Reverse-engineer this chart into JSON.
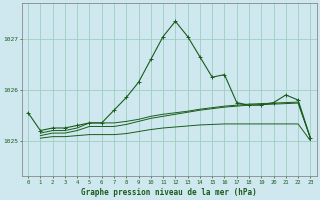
{
  "background_color": "#cfe8f0",
  "grid_color": "#9dcfbf",
  "line_color": "#1a5c1a",
  "marker_color": "#1a5c1a",
  "title": "Graphe pression niveau de la mer (hPa)",
  "xlabel_color": "#1a5c1a",
  "xlim": [
    -0.5,
    23.5
  ],
  "ylim": [
    1024.3,
    1027.7
  ],
  "yticks": [
    1025,
    1026,
    1027
  ],
  "xticks": [
    0,
    1,
    2,
    3,
    4,
    5,
    6,
    7,
    8,
    9,
    10,
    11,
    12,
    13,
    14,
    15,
    16,
    17,
    18,
    19,
    20,
    21,
    22,
    23
  ],
  "series_main": {
    "x": [
      0,
      1,
      2,
      3,
      4,
      5,
      6,
      7,
      8,
      9,
      10,
      11,
      12,
      13,
      14,
      15,
      16,
      17,
      18,
      19,
      20,
      21,
      22,
      23
    ],
    "y": [
      1025.55,
      1025.2,
      1025.25,
      1025.25,
      1025.3,
      1025.35,
      1025.35,
      1025.6,
      1025.85,
      1026.15,
      1026.6,
      1027.05,
      1027.35,
      1027.05,
      1026.65,
      1026.25,
      1026.3,
      1025.75,
      1025.7,
      1025.7,
      1025.75,
      1025.9,
      1025.8,
      1025.05
    ]
  },
  "series_flat": [
    {
      "x": [
        1,
        2,
        3,
        4,
        5,
        6,
        7,
        8,
        9,
        10,
        11,
        12,
        13,
        14,
        15,
        16,
        17,
        18,
        19,
        20,
        21,
        22,
        23
      ],
      "y": [
        1025.15,
        1025.2,
        1025.2,
        1025.25,
        1025.35,
        1025.35,
        1025.35,
        1025.38,
        1025.42,
        1025.48,
        1025.52,
        1025.55,
        1025.58,
        1025.62,
        1025.65,
        1025.68,
        1025.7,
        1025.72,
        1025.73,
        1025.74,
        1025.75,
        1025.76,
        1025.05
      ]
    },
    {
      "x": [
        1,
        2,
        3,
        4,
        5,
        6,
        7,
        8,
        9,
        10,
        11,
        12,
        13,
        14,
        15,
        16,
        17,
        18,
        19,
        20,
        21,
        22,
        23
      ],
      "y": [
        1025.1,
        1025.15,
        1025.15,
        1025.2,
        1025.28,
        1025.28,
        1025.28,
        1025.32,
        1025.38,
        1025.44,
        1025.48,
        1025.52,
        1025.56,
        1025.6,
        1025.63,
        1025.66,
        1025.68,
        1025.7,
        1025.71,
        1025.72,
        1025.73,
        1025.74,
        1025.05
      ]
    },
    {
      "x": [
        1,
        2,
        3,
        4,
        5,
        6,
        7,
        8,
        9,
        10,
        11,
        12,
        13,
        14,
        15,
        16,
        17,
        18,
        19,
        20,
        21,
        22,
        23
      ],
      "y": [
        1025.05,
        1025.08,
        1025.08,
        1025.1,
        1025.12,
        1025.12,
        1025.12,
        1025.14,
        1025.18,
        1025.22,
        1025.25,
        1025.27,
        1025.29,
        1025.31,
        1025.32,
        1025.33,
        1025.33,
        1025.33,
        1025.33,
        1025.33,
        1025.33,
        1025.33,
        1025.0
      ]
    }
  ]
}
